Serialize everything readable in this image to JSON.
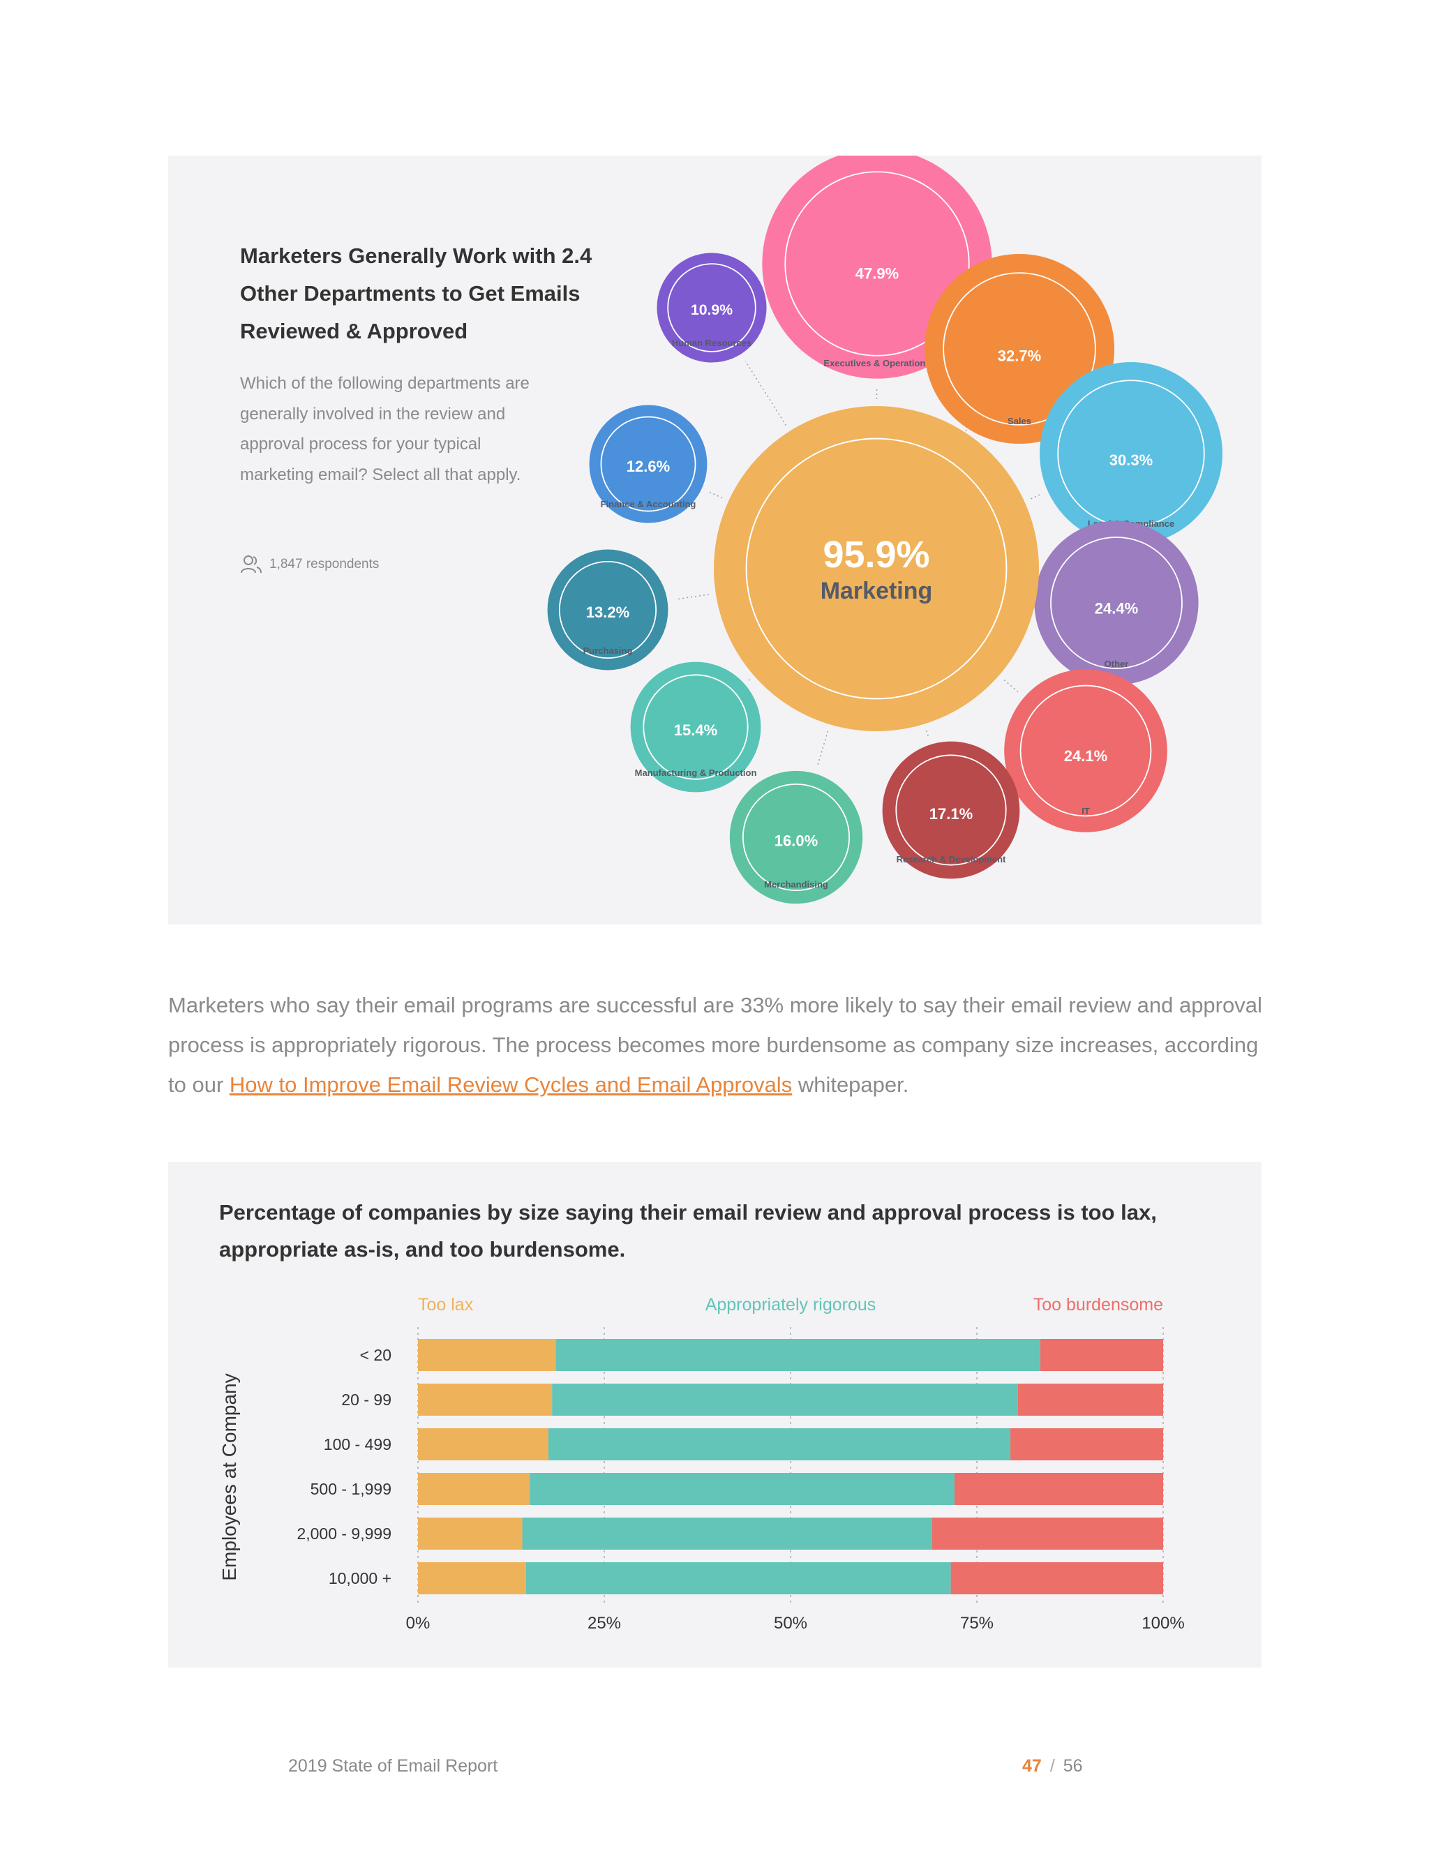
{
  "bubble_section": {
    "title": "Marketers Generally Work with 2.4 Other Departments to Get Emails Reviewed & Approved",
    "question": "Which of the following departments are generally involved in the review and approval process for your typical marketing email? Select all that apply.",
    "respondents": "1,847 respondents",
    "respondents_icon": "users-icon"
  },
  "body": {
    "text_before": "Marketers who say their email programs are successful are 33% more likely to say their email review and approval process is appropriately rigorous. The process becomes more burdensome as company size increases, according to our ",
    "link_text": "How to Improve Email Review Cycles and Email Approvals",
    "text_after": " whitepaper."
  },
  "bar_section": {
    "title": "Percentage of companies by size saying their email review and approval process is too lax, appropriate as-is, and too burdensome."
  },
  "footer": {
    "report": "2019 State of Email Report",
    "page": "47",
    "separator": "/",
    "total": "56"
  },
  "chart_data": [
    {
      "type": "bubble",
      "title": "Marketers Generally Work with 2.4 Other Departments to Get Emails Reviewed & Approved",
      "center": {
        "label": "Marketing",
        "value": 95.9,
        "display": "95.9%",
        "color": "#f0b25a"
      },
      "items": [
        {
          "label": "Executives & Operations",
          "value": 47.9,
          "display": "47.9%",
          "color": "#fd77a4"
        },
        {
          "label": "Sales",
          "value": 32.7,
          "display": "32.7%",
          "color": "#f38b3d"
        },
        {
          "label": "Legal & Compliance",
          "value": 30.3,
          "display": "30.3%",
          "color": "#5bc0e2"
        },
        {
          "label": "Other",
          "value": 24.4,
          "display": "24.4%",
          "color": "#9b7dc0"
        },
        {
          "label": "IT",
          "value": 24.1,
          "display": "24.1%",
          "color": "#ee6a6c"
        },
        {
          "label": "Research & Development",
          "value": 17.1,
          "display": "17.1%",
          "color": "#b84a4c"
        },
        {
          "label": "Merchandising",
          "value": 16.0,
          "display": "16.0%",
          "color": "#5dc2a0"
        },
        {
          "label": "Manufacturing & Production",
          "value": 15.4,
          "display": "15.4%",
          "color": "#58c4b6"
        },
        {
          "label": "Purchasing",
          "value": 13.2,
          "display": "13.2%",
          "color": "#3b8fa7"
        },
        {
          "label": "Finance & Accounting",
          "value": 12.6,
          "display": "12.6%",
          "color": "#4a90db"
        },
        {
          "label": "Human Resources",
          "value": 10.9,
          "display": "10.9%",
          "color": "#7e5ad1"
        }
      ]
    },
    {
      "type": "bar",
      "orientation": "horizontal",
      "stacked": true,
      "title": "Percentage of companies by size saying their email review and approval process is too lax, appropriate as-is, and too burdensome.",
      "ylabel": "Employees at Company",
      "xlabel": "",
      "categories": [
        "< 20",
        "20 - 99",
        "100 - 499",
        "500 - 1,999",
        "2,000 - 9,999",
        "10,000 +"
      ],
      "series": [
        {
          "name": "Too lax",
          "color": "#eeb25b",
          "values": [
            18.5,
            18,
            17.5,
            15,
            14,
            14.5
          ]
        },
        {
          "name": "Appropriately rigorous",
          "color": "#63c4b8",
          "values": [
            65,
            62.5,
            62,
            57,
            55,
            57
          ]
        },
        {
          "name": "Too burdensome",
          "color": "#ec6f69",
          "values": [
            16.5,
            19.5,
            20.5,
            28,
            31,
            28.5
          ]
        }
      ],
      "xlim": [
        0,
        100
      ],
      "x_ticks": [
        "0%",
        "25%",
        "50%",
        "75%",
        "100%"
      ],
      "grid": true,
      "legend_position": "top"
    }
  ]
}
